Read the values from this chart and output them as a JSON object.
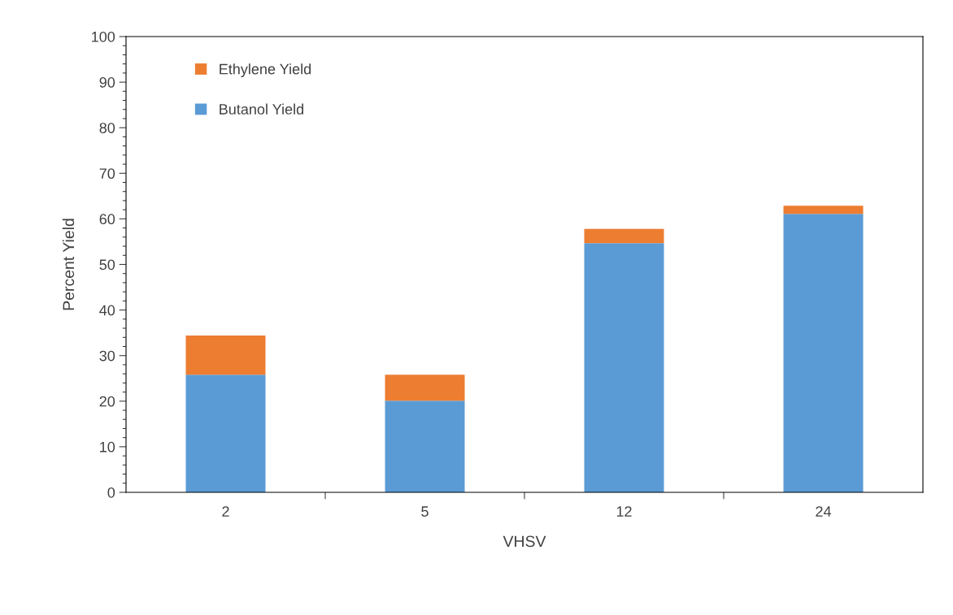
{
  "chart_data": {
    "type": "bar",
    "xlabel": "VHSV",
    "ylabel": "Percent Yield",
    "categories": [
      "2",
      "5",
      "12",
      "24"
    ],
    "stacked": true,
    "series": [
      {
        "name": "Butanol Yield",
        "color": "#5b9bd5",
        "values": [
          25.8,
          20.1,
          54.7,
          61.1
        ]
      },
      {
        "name": "Ethylene Yield",
        "color": "#ed7d31",
        "values": [
          8.6,
          5.7,
          3.1,
          1.8
        ]
      }
    ],
    "ylim": [
      0,
      100
    ],
    "yticks": [
      0,
      10,
      20,
      30,
      40,
      50,
      60,
      70,
      80,
      90,
      100
    ],
    "grid": false,
    "legend": "top left"
  }
}
